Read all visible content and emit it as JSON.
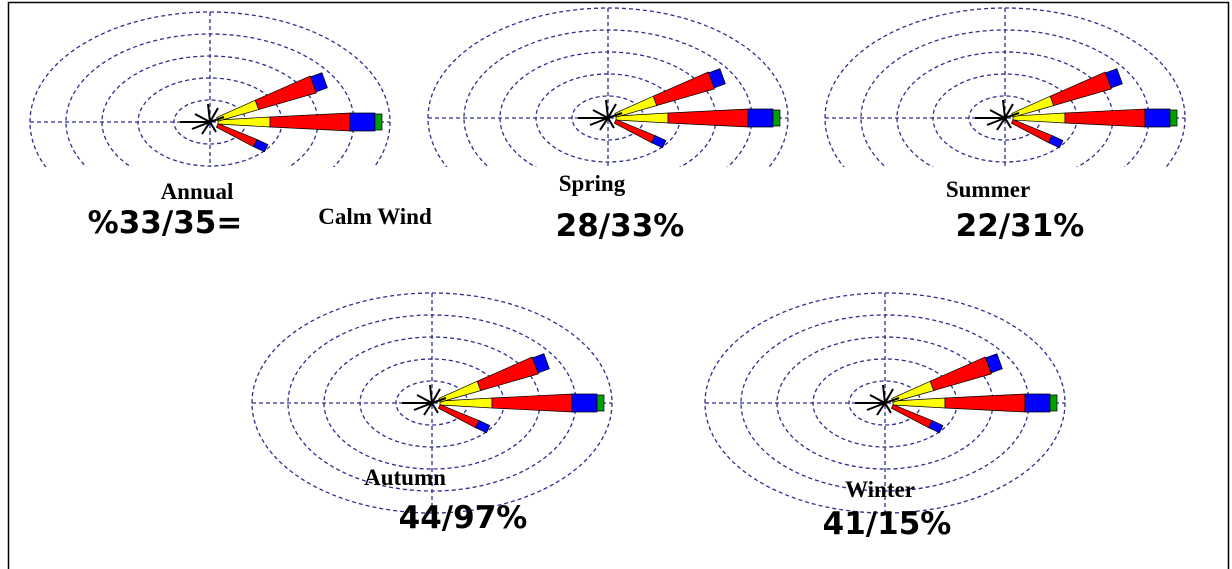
{
  "panels": [
    {
      "title": "Annual",
      "value": "%33/35="
    },
    {
      "title": "Spring",
      "value": "28/33%"
    },
    {
      "title": "Summer",
      "value": "22/31%"
    },
    {
      "title": "Autumn",
      "value": "44/97%"
    },
    {
      "title": "Winter",
      "value": "41/15%"
    }
  ],
  "calm_label": "Calm Wind"
}
